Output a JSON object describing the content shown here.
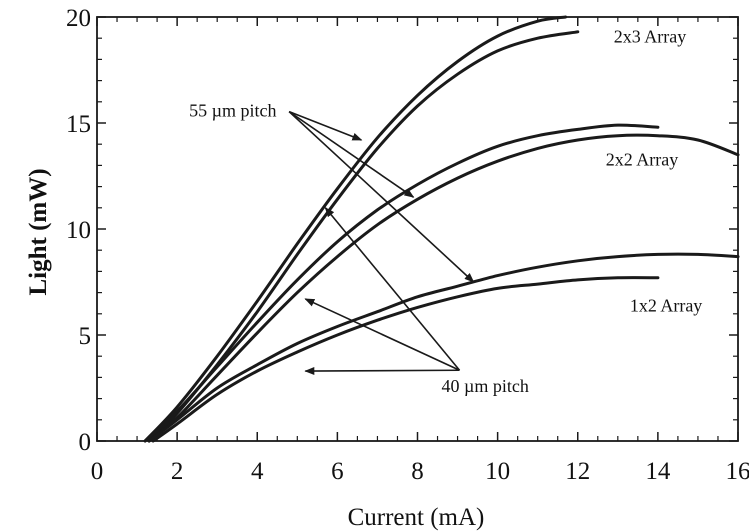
{
  "chart_data": {
    "type": "line",
    "xlabel": "Current (mA)",
    "ylabel": "Light (mW)",
    "xlim": [
      0,
      16
    ],
    "ylim": [
      0,
      20
    ],
    "xticks": [
      "0",
      "2",
      "4",
      "6",
      "8",
      "10",
      "12",
      "14",
      "16"
    ],
    "yticks": [
      "0",
      "5",
      "10",
      "15",
      "20"
    ],
    "grid": false,
    "legend": "none",
    "line_color": "#1a1a1a",
    "series": [
      {
        "x": [
          1.2,
          2,
          3,
          4,
          5,
          6,
          7,
          8,
          9,
          10,
          11,
          11.7
        ],
        "y": [
          0,
          1.6,
          4.0,
          6.6,
          9.3,
          11.9,
          14.3,
          16.3,
          17.9,
          19.1,
          19.8,
          20.0
        ]
      },
      {
        "x": [
          1.3,
          2,
          3,
          4,
          5,
          6,
          7,
          8,
          9,
          10,
          11,
          12
        ],
        "y": [
          0,
          1.3,
          3.6,
          6.1,
          8.8,
          11.4,
          13.8,
          15.8,
          17.3,
          18.4,
          19.0,
          19.3
        ]
      },
      {
        "x": [
          1.2,
          2,
          3,
          4,
          5,
          6,
          7,
          8,
          9,
          10,
          11,
          12,
          13,
          14
        ],
        "y": [
          0,
          1.4,
          3.5,
          5.6,
          7.6,
          9.4,
          10.9,
          12.1,
          13.1,
          13.9,
          14.4,
          14.7,
          14.9,
          14.8
        ]
      },
      {
        "x": [
          1.3,
          2,
          3,
          4,
          5,
          6,
          7,
          8,
          9,
          10,
          11,
          12,
          13,
          14,
          15,
          16
        ],
        "y": [
          0,
          1.1,
          3.1,
          5.1,
          7.0,
          8.7,
          10.2,
          11.4,
          12.4,
          13.2,
          13.8,
          14.2,
          14.4,
          14.4,
          14.2,
          13.5
        ]
      },
      {
        "x": [
          1.3,
          2,
          3,
          4,
          5,
          6,
          7,
          8,
          9,
          10,
          11,
          12,
          13,
          14,
          15,
          16
        ],
        "y": [
          0,
          1.0,
          2.5,
          3.6,
          4.6,
          5.4,
          6.1,
          6.8,
          7.3,
          7.8,
          8.2,
          8.5,
          8.7,
          8.8,
          8.8,
          8.7
        ]
      },
      {
        "x": [
          1.4,
          2,
          3,
          4,
          5,
          6,
          7,
          8,
          9,
          10,
          11,
          12,
          13,
          14
        ],
        "y": [
          0,
          0.8,
          2.2,
          3.3,
          4.2,
          5.0,
          5.7,
          6.3,
          6.8,
          7.2,
          7.4,
          7.6,
          7.7,
          7.7
        ]
      }
    ],
    "annotations": [
      {
        "text": "2x3 Array",
        "x": 12.9,
        "y": 18.8
      },
      {
        "text": "2x2 Array",
        "x": 12.7,
        "y": 13.0
      },
      {
        "text": "1x2 Array",
        "x": 13.3,
        "y": 6.1
      },
      {
        "text": "55 µm pitch",
        "x": 2.3,
        "y": 15.3,
        "arrows_to": [
          [
            6.6,
            14.2
          ],
          [
            7.9,
            11.5
          ],
          [
            9.4,
            7.5
          ]
        ]
      },
      {
        "text": "40 µm pitch",
        "x": 8.6,
        "y": 2.3,
        "arrows_to": [
          [
            5.7,
            11.0
          ],
          [
            5.2,
            6.7
          ],
          [
            5.2,
            3.3
          ]
        ]
      }
    ]
  }
}
